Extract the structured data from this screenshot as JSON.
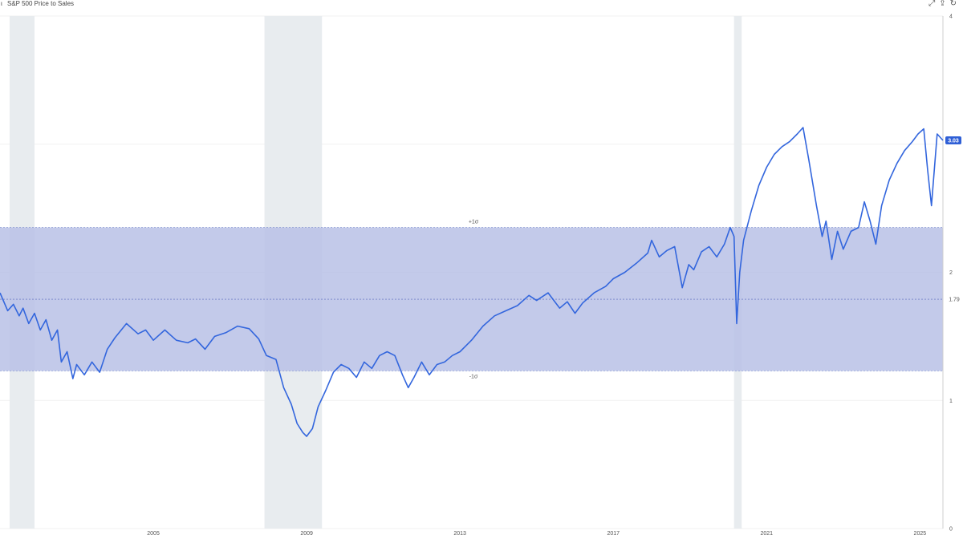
{
  "header": {
    "marker": "ι",
    "title": "S&P 500 Price to Sales",
    "toolbar": [
      {
        "name": "expand-icon",
        "glyph": "⤢"
      },
      {
        "name": "share-icon",
        "glyph": "⇪"
      },
      {
        "name": "refresh-icon",
        "glyph": "↻"
      }
    ]
  },
  "colors": {
    "line": "#3366dd",
    "band": "#b9c1e6",
    "recession": "#e8ecef",
    "grid": "#f0f0f0",
    "badge": "#2f5fd6"
  },
  "chart_data": {
    "type": "line",
    "title": "S&P 500 Price to Sales",
    "ylim": [
      0,
      4
    ],
    "y_ticks": [
      {
        "value": 0,
        "label": "0"
      },
      {
        "value": 1,
        "label": "1"
      },
      {
        "value": 2,
        "label": "2"
      },
      {
        "value": 4,
        "label": "4"
      }
    ],
    "x_range": [
      2001.0,
      2025.6
    ],
    "x_ticks": [
      {
        "value": 2005,
        "label": "2005"
      },
      {
        "value": 2009,
        "label": "2009"
      },
      {
        "value": 2013,
        "label": "2013"
      },
      {
        "value": 2017,
        "label": "2017"
      },
      {
        "value": 2021,
        "label": "2021"
      },
      {
        "value": 2025,
        "label": "2025"
      }
    ],
    "grid": true,
    "mean": {
      "value": 1.79,
      "label": "1.79"
    },
    "band": {
      "upper": 2.35,
      "lower": 1.23,
      "upper_label": "+1σ",
      "lower_label": "-1σ"
    },
    "current": {
      "value": 3.03,
      "label": "3.03"
    },
    "recessions": [
      [
        2001.25,
        2001.9
      ],
      [
        2007.9,
        2009.4
      ],
      [
        2020.15,
        2020.35
      ]
    ],
    "series": [
      {
        "x": [
          2001.0,
          2001.2,
          2001.35,
          2001.5,
          2001.6,
          2001.75,
          2001.9,
          2002.05,
          2002.2,
          2002.35,
          2002.5,
          2002.6,
          2002.75,
          2002.9,
          2003.0,
          2003.2,
          2003.4,
          2003.6,
          2003.8,
          2004.0,
          2004.3,
          2004.6,
          2004.8,
          2005.0,
          2005.3,
          2005.6,
          2005.9,
          2006.1,
          2006.35,
          2006.6,
          2006.9,
          2007.2,
          2007.5,
          2007.75,
          2007.95,
          2008.2,
          2008.4,
          2008.6,
          2008.75,
          2008.9,
          2009.0,
          2009.15,
          2009.3,
          2009.5,
          2009.7,
          2009.9,
          2010.1,
          2010.3,
          2010.5,
          2010.7,
          2010.9,
          2011.1,
          2011.3,
          2011.5,
          2011.65,
          2011.8,
          2012.0,
          2012.2,
          2012.4,
          2012.6,
          2012.8,
          2013.0,
          2013.3,
          2013.6,
          2013.9,
          2014.2,
          2014.5,
          2014.8,
          2015.0,
          2015.3,
          2015.6,
          2015.8,
          2016.0,
          2016.2,
          2016.5,
          2016.8,
          2017.0,
          2017.3,
          2017.6,
          2017.9,
          2018.0,
          2018.2,
          2018.4,
          2018.6,
          2018.8,
          2018.97,
          2019.1,
          2019.3,
          2019.5,
          2019.7,
          2019.9,
          2020.05,
          2020.15,
          2020.22,
          2020.3,
          2020.4,
          2020.6,
          2020.8,
          2021.0,
          2021.2,
          2021.4,
          2021.6,
          2021.8,
          2021.95,
          2022.1,
          2022.3,
          2022.45,
          2022.55,
          2022.7,
          2022.85,
          2023.0,
          2023.2,
          2023.4,
          2023.55,
          2023.7,
          2023.85,
          2024.0,
          2024.2,
          2024.4,
          2024.6,
          2024.8,
          2024.95,
          2025.1,
          2025.2,
          2025.3,
          2025.45,
          2025.6
        ],
        "values": [
          1.84,
          1.7,
          1.75,
          1.66,
          1.72,
          1.6,
          1.68,
          1.55,
          1.63,
          1.47,
          1.55,
          1.3,
          1.38,
          1.17,
          1.28,
          1.2,
          1.3,
          1.22,
          1.4,
          1.49,
          1.6,
          1.52,
          1.55,
          1.47,
          1.55,
          1.47,
          1.45,
          1.48,
          1.4,
          1.5,
          1.53,
          1.58,
          1.56,
          1.48,
          1.35,
          1.32,
          1.1,
          0.97,
          0.82,
          0.75,
          0.72,
          0.78,
          0.95,
          1.08,
          1.22,
          1.28,
          1.25,
          1.18,
          1.3,
          1.25,
          1.35,
          1.38,
          1.35,
          1.2,
          1.1,
          1.18,
          1.3,
          1.2,
          1.28,
          1.3,
          1.35,
          1.38,
          1.47,
          1.58,
          1.66,
          1.7,
          1.74,
          1.82,
          1.78,
          1.84,
          1.72,
          1.77,
          1.68,
          1.76,
          1.84,
          1.89,
          1.95,
          2.0,
          2.07,
          2.15,
          2.25,
          2.12,
          2.17,
          2.2,
          1.88,
          2.06,
          2.02,
          2.16,
          2.2,
          2.12,
          2.22,
          2.35,
          2.28,
          1.6,
          2.0,
          2.25,
          2.48,
          2.68,
          2.82,
          2.92,
          2.98,
          3.02,
          3.08,
          3.13,
          2.88,
          2.52,
          2.28,
          2.4,
          2.1,
          2.32,
          2.18,
          2.32,
          2.35,
          2.55,
          2.4,
          2.22,
          2.52,
          2.72,
          2.85,
          2.95,
          3.02,
          3.08,
          3.12,
          2.8,
          2.52,
          3.08,
          3.03
        ]
      }
    ]
  }
}
